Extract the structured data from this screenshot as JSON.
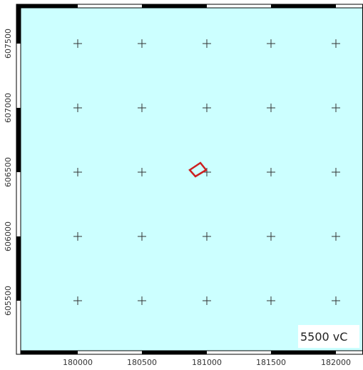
{
  "map": {
    "water_color": "#ccffff",
    "frame_color": "#000000",
    "feature_color": "#cc1f1f",
    "x_ticks": [
      "180000",
      "180500",
      "181000",
      "181500",
      "182000"
    ],
    "y_ticks": [
      "607500",
      "607000",
      "606500",
      "606000",
      "605500"
    ],
    "scale_label": "5500 vC",
    "grid_marker": "plus-icon"
  }
}
